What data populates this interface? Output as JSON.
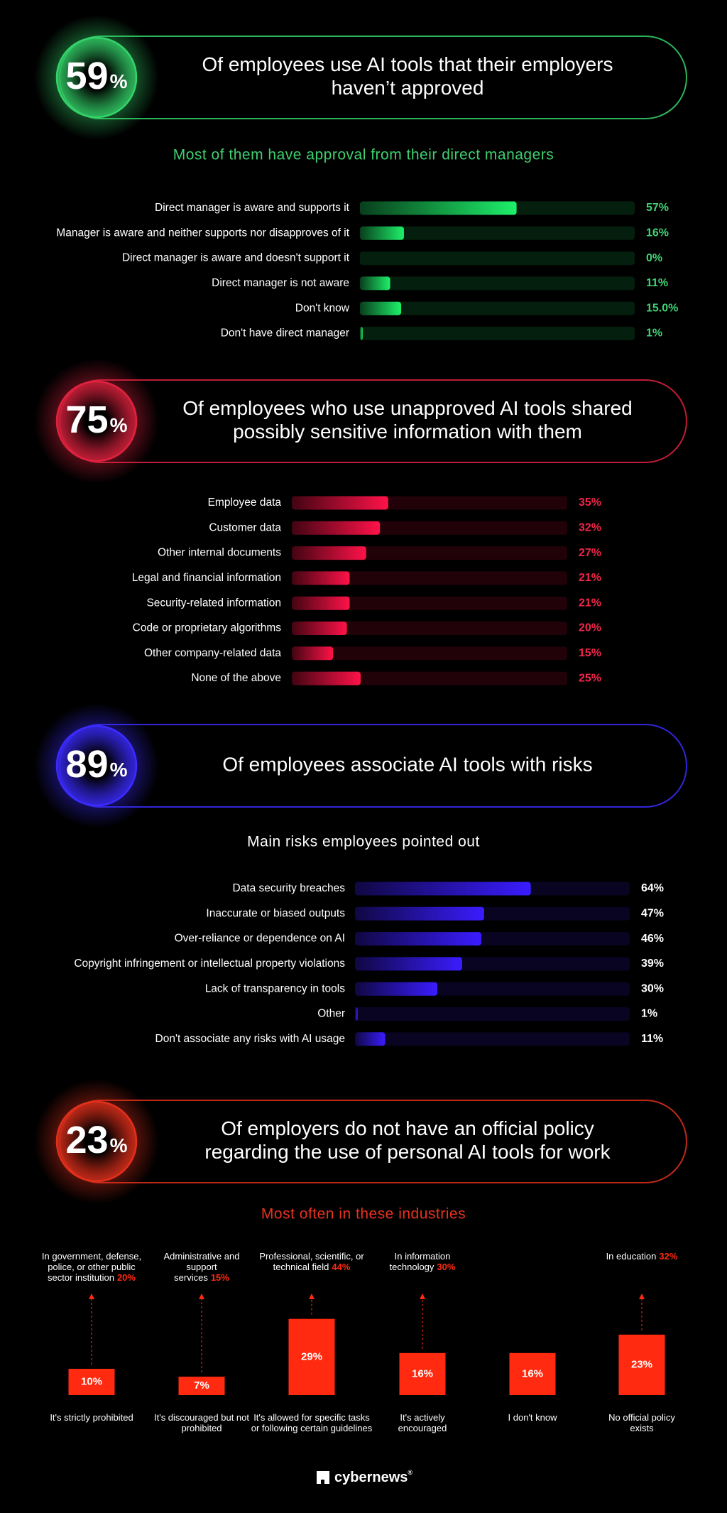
{
  "callouts": [
    {
      "value": 59,
      "unit": "%",
      "statement": [
        "Of employees use AI tools that their employers",
        "haven’t approved"
      ],
      "color": "#34d46a"
    },
    {
      "value": 75,
      "unit": "%",
      "statement": [
        "Of employees who use unapproved AI tools shared",
        "possibly sensitive information with them"
      ],
      "color": "#e0223f"
    },
    {
      "value": 89,
      "unit": "%",
      "statement": [
        "Of employees associate AI tools with risks"
      ],
      "color": "#3b2bff"
    },
    {
      "value": 23,
      "unit": "%",
      "statement": [
        "Of employers do not have an official policy",
        "regarding the use of personal AI tools for work"
      ],
      "color": "#e2301c"
    }
  ],
  "chart_data": [
    {
      "type": "barh",
      "title": "Most of them have approval from their direct managers",
      "title_color": "#3fcf6f",
      "categories": [
        "Direct manager is aware and supports it",
        "Manager is aware and neither supports nor disapproves of it",
        "Direct manager is aware and doesn't support it",
        "Direct manager is not aware",
        "Don't know",
        "Don't have direct manager"
      ],
      "values": [
        57,
        16,
        0,
        11,
        15,
        1
      ],
      "value_labels": [
        "57%",
        "16%",
        "0%",
        "11%",
        "15.0%",
        "1%"
      ],
      "color": "#1ef06a",
      "label_color": "#3fd474",
      "xlim": [
        0,
        100
      ]
    },
    {
      "type": "barh",
      "categories": [
        "Employee data",
        "Customer data",
        "Other internal documents",
        "Legal and financial information",
        "Security-related information",
        "Code or proprietary algorithms",
        "Other company-related data",
        "None of the above"
      ],
      "values": [
        35,
        32,
        27,
        21,
        21,
        20,
        15,
        25
      ],
      "value_labels": [
        "35%",
        "32%",
        "27%",
        "21%",
        "21%",
        "20%",
        "15%",
        "25%"
      ],
      "color": "#ff1248",
      "label_color": "#f0264a",
      "xlim": [
        0,
        100
      ]
    },
    {
      "type": "barh",
      "title": "Main risks employees pointed out",
      "title_color": "#ffffff",
      "categories": [
        "Data security breaches",
        "Inaccurate or biased outputs",
        "Over-reliance or dependence on AI",
        "Copyright infringement or intellectual property violations",
        "Lack of transparency in tools",
        "Other",
        "Don't associate any risks with AI usage"
      ],
      "values": [
        64,
        47,
        46,
        39,
        30,
        1,
        11
      ],
      "value_labels": [
        "64%",
        "47%",
        "46%",
        "39%",
        "30%",
        "1%",
        "11%"
      ],
      "color": "#3a1cff",
      "label_color": "#ffffff",
      "xlim": [
        0,
        100
      ]
    },
    {
      "type": "bar",
      "title": "Most often in these industries",
      "title_color": "#e8321e",
      "categories": [
        "It's strictly prohibited",
        "It's discouraged but not prohibited",
        "It's allowed for specific tasks or following certain guidelines",
        "It's actively encouraged",
        "I don't know",
        "No official policy exists"
      ],
      "values": [
        10,
        7,
        29,
        16,
        16,
        23
      ],
      "value_labels": [
        "10%",
        "7%",
        "29%",
        "16%",
        "16%",
        "23%"
      ],
      "annotations": [
        {
          "text": "In government, defense, police, or other public sector institution",
          "share": "20%"
        },
        {
          "text": "Administrative and support services",
          "share": "15%"
        },
        {
          "text": "Professional, scientific, or technical field",
          "share": "44%"
        },
        {
          "text": "In information technology",
          "share": "30%"
        },
        null,
        {
          "text": "In education",
          "share": "32%"
        }
      ],
      "color": "#ff2a10",
      "label_color": "#ffffff",
      "ylim": [
        0,
        40
      ]
    }
  ],
  "footer": {
    "brand": "cybernews",
    "mark": "®"
  }
}
